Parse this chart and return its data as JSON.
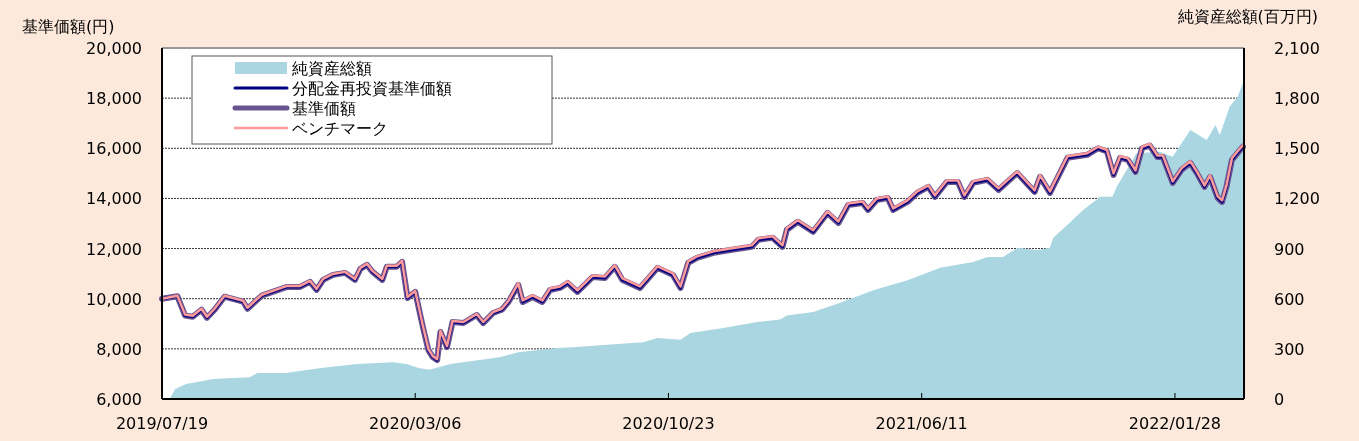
{
  "chart_data": {
    "type": "line",
    "ylabel": "基準価額(円)",
    "y2label": "純資産総額(百万円)",
    "xlim": [
      "2019-07-19",
      "2022-04-01"
    ],
    "xticks": [
      {
        "value": "2019-07-19",
        "label": "2019/07/19"
      },
      {
        "value": "2020-03-06",
        "label": "2020/03/06"
      },
      {
        "value": "2020-10-23",
        "label": "2020/10/23"
      },
      {
        "value": "2021-06-11",
        "label": "2021/06/11"
      },
      {
        "value": "2022-01-28",
        "label": "2022/01/28"
      }
    ],
    "ylim": [
      6000,
      20000
    ],
    "yticks": [
      {
        "value": 6000,
        "label": "6,000"
      },
      {
        "value": 8000,
        "label": "8,000"
      },
      {
        "value": 10000,
        "label": "10,000"
      },
      {
        "value": 12000,
        "label": "12,000"
      },
      {
        "value": 14000,
        "label": "14,000"
      },
      {
        "value": 16000,
        "label": "16,000"
      },
      {
        "value": 18000,
        "label": "18,000"
      },
      {
        "value": 20000,
        "label": "20,000"
      }
    ],
    "y2lim": [
      0,
      2100
    ],
    "y2ticks": [
      0,
      300,
      600,
      900,
      {
        "value": 1200,
        "label": "1,200"
      },
      {
        "value": 1500,
        "label": "1,500"
      },
      {
        "value": 1800,
        "label": "1,800"
      },
      {
        "value": 2100,
        "label": "2,100"
      }
    ],
    "grid": "y",
    "legend": "top left",
    "x": [
      "2019-07-19",
      "2019-08-02",
      "2019-08-09",
      "2019-08-16",
      "2019-08-24",
      "2019-08-29",
      "2019-09-05",
      "2019-09-14",
      "2019-10-01",
      "2019-10-05",
      "2019-10-18",
      "2019-11-10",
      "2019-11-22",
      "2019-12-01",
      "2019-12-07",
      "2019-12-13",
      "2019-12-22",
      "2020-01-02",
      "2020-01-11",
      "2020-01-16",
      "2020-01-22",
      "2020-01-27",
      "2020-02-05",
      "2020-02-09",
      "2020-02-18",
      "2020-02-23",
      "2020-02-28",
      "2020-03-06",
      "2020-03-13",
      "2020-03-18",
      "2020-03-22",
      "2020-03-26",
      "2020-03-29",
      "2020-04-04",
      "2020-04-09",
      "2020-04-19",
      "2020-05-01",
      "2020-05-07",
      "2020-05-16",
      "2020-05-24",
      "2020-05-30",
      "2020-06-08",
      "2020-06-12",
      "2020-06-21",
      "2020-06-30",
      "2020-07-07",
      "2020-07-16",
      "2020-07-23",
      "2020-08-01",
      "2020-08-15",
      "2020-08-26",
      "2020-09-04",
      "2020-09-11",
      "2020-09-27",
      "2020-10-13",
      "2020-10-27",
      "2020-11-03",
      "2020-11-10",
      "2020-11-18",
      "2020-12-03",
      "2020-12-20",
      "2021-01-07",
      "2021-01-13",
      "2021-01-26",
      "2021-02-04",
      "2021-02-08",
      "2021-02-18",
      "2021-03-04",
      "2021-03-17",
      "2021-03-27",
      "2021-04-05",
      "2021-04-18",
      "2021-04-23",
      "2021-05-01",
      "2021-05-11",
      "2021-05-16",
      "2021-05-29",
      "2021-06-07",
      "2021-06-17",
      "2021-06-23",
      "2021-07-04",
      "2021-07-14",
      "2021-07-20",
      "2021-07-28",
      "2021-08-10",
      "2021-08-20",
      "2021-09-06",
      "2021-09-22",
      "2021-09-27",
      "2021-10-06",
      "2021-10-22",
      "2021-11-09",
      "2021-11-19",
      "2021-11-27",
      "2021-12-03",
      "2021-12-09",
      "2021-12-16",
      "2021-12-23",
      "2021-12-29",
      "2022-01-05",
      "2022-01-12",
      "2022-01-17",
      "2022-01-26",
      "2022-02-03",
      "2022-02-11",
      "2022-02-17",
      "2022-02-24",
      "2022-03-01",
      "2022-03-08",
      "2022-03-12",
      "2022-03-16",
      "2022-03-21",
      "2022-03-27",
      "2022-03-31"
    ],
    "series": [
      {
        "name": "純資産総額",
        "type": "area",
        "axis": "y2",
        "color": "#a9d6e1",
        "x": [
          "2019-07-26",
          "2019-07-31",
          "2019-08-10",
          "2019-09-04",
          "2019-10-07",
          "2019-10-14",
          "2019-11-09",
          "2019-12-11",
          "2020-01-13",
          "2020-02-15",
          "2020-02-27",
          "2020-03-09",
          "2020-03-19",
          "2020-04-07",
          "2020-05-22",
          "2020-06-08",
          "2020-07-13",
          "2020-07-28",
          "2020-08-28",
          "2020-09-30",
          "2020-10-13",
          "2020-11-03",
          "2020-11-12",
          "2020-12-12",
          "2021-01-12",
          "2021-02-02",
          "2021-02-08",
          "2021-03-04",
          "2021-03-28",
          "2021-04-28",
          "2021-05-29",
          "2021-06-28",
          "2021-07-28",
          "2021-08-10",
          "2021-08-24",
          "2021-09-07",
          "2021-09-24",
          "2021-10-06",
          "2021-10-09",
          "2021-10-24",
          "2021-11-05",
          "2021-11-21",
          "2021-12-02",
          "2021-12-06",
          "2021-12-24",
          "2022-01-14",
          "2022-01-26",
          "2022-02-11",
          "2022-02-26",
          "2022-03-06",
          "2022-03-10",
          "2022-03-19",
          "2022-03-26",
          "2022-03-31"
        ],
        "values": [
          0,
          60,
          90,
          120,
          130,
          155,
          155,
          185,
          210,
          220,
          210,
          185,
          175,
          210,
          250,
          280,
          305,
          310,
          325,
          340,
          365,
          355,
          395,
          425,
          460,
          475,
          500,
          520,
          575,
          650,
          710,
          785,
          820,
          850,
          850,
          905,
          890,
          905,
          965,
          1055,
          1130,
          1210,
          1210,
          1270,
          1470,
          1480,
          1450,
          1610,
          1550,
          1640,
          1580,
          1750,
          1805,
          1890
        ]
      },
      {
        "name": "分配金再投資基準価額",
        "type": "line",
        "color": "#000080",
        "values": [
          10000,
          10100,
          9330,
          9280,
          9560,
          9240,
          9560,
          10080,
          9880,
          9600,
          10120,
          10470,
          10470,
          10670,
          10350,
          10750,
          10950,
          11030,
          10750,
          11190,
          11350,
          11070,
          10750,
          11270,
          11270,
          11470,
          10030,
          10270,
          8870,
          7950,
          7670,
          7550,
          8670,
          8070,
          9070,
          9030,
          9350,
          9030,
          9430,
          9560,
          9870,
          10550,
          9870,
          10070,
          9870,
          10350,
          10430,
          10630,
          10270,
          10870,
          10830,
          11270,
          10750,
          10430,
          11230,
          10950,
          10430,
          11430,
          11630,
          11830,
          11950,
          12070,
          12350,
          12430,
          12070,
          12750,
          13070,
          12670,
          13420,
          13020,
          13740,
          13820,
          13540,
          13940,
          14020,
          13540,
          13860,
          14220,
          14460,
          14060,
          14660,
          14660,
          14060,
          14620,
          14740,
          14340,
          15010,
          14260,
          14860,
          14220,
          15620,
          15740,
          16000,
          15870,
          14940,
          15620,
          15540,
          15060,
          16000,
          16110,
          15650,
          15650,
          14620,
          15140,
          15420,
          15010,
          14460,
          14860,
          14020,
          13860,
          14460,
          15540,
          15860,
          16060
        ]
      },
      {
        "name": "基準価額",
        "type": "line",
        "color": "#6a5490",
        "values": [
          10000,
          10100,
          9330,
          9280,
          9560,
          9240,
          9560,
          10080,
          9880,
          9600,
          10120,
          10470,
          10470,
          10670,
          10350,
          10750,
          10950,
          11030,
          10750,
          11190,
          11350,
          11070,
          10750,
          11270,
          11270,
          11470,
          10030,
          10270,
          8870,
          7950,
          7670,
          7550,
          8670,
          8070,
          9070,
          9030,
          9350,
          9030,
          9430,
          9560,
          9870,
          10550,
          9870,
          10070,
          9870,
          10350,
          10430,
          10630,
          10270,
          10870,
          10830,
          11270,
          10750,
          10430,
          11230,
          10950,
          10430,
          11430,
          11630,
          11830,
          11950,
          12070,
          12350,
          12430,
          12070,
          12750,
          13070,
          12670,
          13420,
          13020,
          13740,
          13820,
          13540,
          13940,
          14020,
          13540,
          13860,
          14220,
          14460,
          14060,
          14660,
          14660,
          14060,
          14620,
          14740,
          14340,
          15010,
          14260,
          14860,
          14220,
          15620,
          15740,
          16000,
          15870,
          14940,
          15620,
          15540,
          15060,
          16000,
          16110,
          15650,
          15650,
          14620,
          15140,
          15420,
          15010,
          14460,
          14860,
          14020,
          13860,
          14460,
          15540,
          15860,
          16060
        ]
      },
      {
        "name": "ベンチマーク",
        "type": "line",
        "color": "#ff9a9a",
        "values": [
          10000,
          10120,
          9370,
          9320,
          9600,
          9280,
          9600,
          10120,
          9920,
          9640,
          10160,
          10510,
          10510,
          10710,
          10390,
          10790,
          10990,
          11070,
          10790,
          11230,
          11390,
          11110,
          10790,
          11310,
          11310,
          11510,
          10070,
          10310,
          8910,
          7990,
          7710,
          7590,
          8710,
          8110,
          9110,
          9070,
          9390,
          9070,
          9470,
          9600,
          9910,
          10610,
          9930,
          10130,
          9930,
          10410,
          10490,
          10690,
          10330,
          10930,
          10890,
          11330,
          10810,
          10490,
          11290,
          11010,
          10490,
          11490,
          11690,
          11890,
          12010,
          12130,
          12410,
          12490,
          12130,
          12810,
          13130,
          12730,
          13480,
          13080,
          13800,
          13880,
          13600,
          14000,
          14080,
          13600,
          13920,
          14280,
          14520,
          14120,
          14720,
          14720,
          14120,
          14680,
          14800,
          14400,
          15070,
          14320,
          14920,
          14280,
          15680,
          15800,
          16060,
          15930,
          15000,
          15680,
          15600,
          15120,
          16060,
          16170,
          15710,
          15710,
          14680,
          15200,
          15480,
          15070,
          14520,
          14920,
          14080,
          13920,
          14520,
          15600,
          15920,
          16120
        ]
      }
    ]
  }
}
